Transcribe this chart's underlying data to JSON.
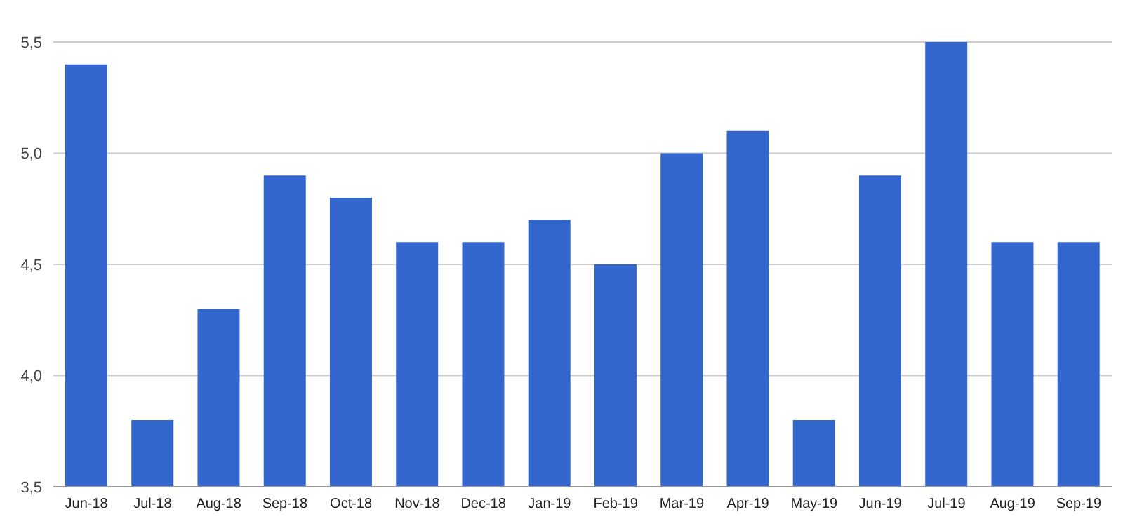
{
  "chart_data": {
    "type": "bar",
    "categories": [
      "Jun-18",
      "Jul-18",
      "Aug-18",
      "Sep-18",
      "Oct-18",
      "Nov-18",
      "Dec-18",
      "Jan-19",
      "Feb-19",
      "Mar-19",
      "Apr-19",
      "May-19",
      "Jun-19",
      "Jul-19",
      "Aug-19",
      "Sep-19"
    ],
    "values": [
      5.4,
      3.8,
      4.3,
      4.9,
      4.8,
      4.6,
      4.6,
      4.7,
      4.5,
      5.0,
      5.1,
      3.8,
      4.9,
      5.5,
      4.6,
      4.6
    ],
    "color": "#3366cc",
    "ylim": [
      3.5,
      5.5
    ],
    "yticks": [
      {
        "value": 3.5,
        "label": "3,5"
      },
      {
        "value": 4.0,
        "label": "4,0"
      },
      {
        "value": 4.5,
        "label": "4,5"
      },
      {
        "value": 5.0,
        "label": "5,0"
      },
      {
        "value": 5.5,
        "label": "5,5"
      }
    ],
    "grid": "y"
  }
}
